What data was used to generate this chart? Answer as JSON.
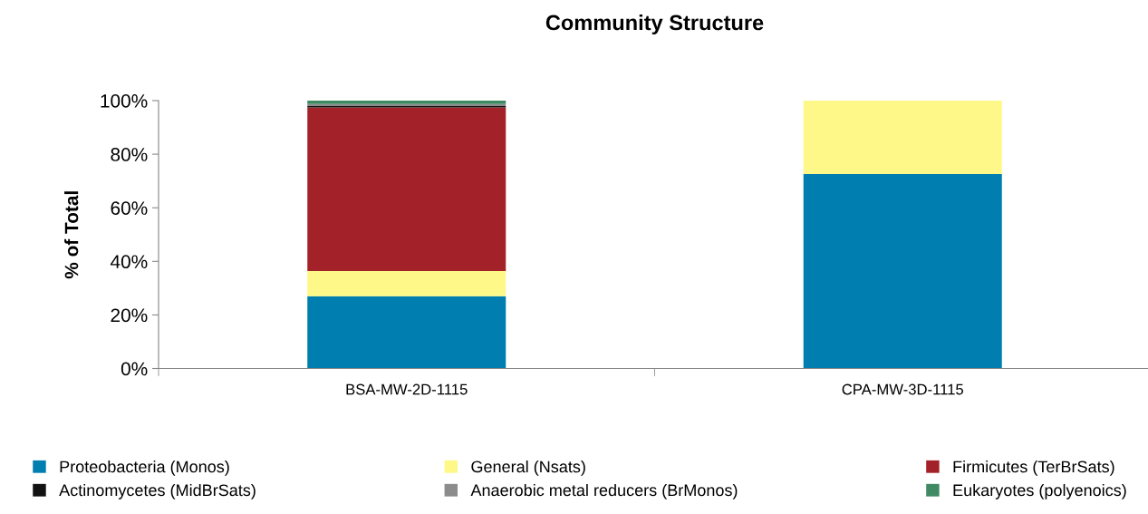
{
  "chart_data": {
    "type": "bar",
    "stacked": true,
    "title": "Community Structure",
    "ylabel": "% of Total",
    "categories": [
      "BSA-MW-2D-1115",
      "CPA-MW-3D-1115"
    ],
    "series": [
      {
        "name": "Proteobacteria (Monos)",
        "color": "#007eb0",
        "values": [
          27,
          72.6
        ]
      },
      {
        "name": "General (Nsats)",
        "color": "#fdf887",
        "values": [
          9.4,
          27.4
        ]
      },
      {
        "name": "Firmicutes (TerBrSats)",
        "color": "#a32128",
        "values": [
          61.1,
          0
        ]
      },
      {
        "name": "Actinomycetes (MidBrSats)",
        "color": "#121212",
        "values": [
          0.5,
          0
        ]
      },
      {
        "name": "Anaerobic metal reducers (BrMonos)",
        "color": "#8c8c8c",
        "values": [
          0.7,
          0
        ]
      },
      {
        "name": "Eukaryotes (polyenoics)",
        "color": "#3f8a63",
        "values": [
          1.3,
          0
        ]
      }
    ],
    "ylim": [
      0,
      100
    ],
    "yticks": [
      {
        "value": 0,
        "label": "0%"
      },
      {
        "value": 20,
        "label": "20%"
      },
      {
        "value": 40,
        "label": "40%"
      },
      {
        "value": 60,
        "label": "60%"
      },
      {
        "value": 80,
        "label": "80%"
      },
      {
        "value": 100,
        "label": "100%"
      }
    ],
    "grid": false,
    "legend": "bottom"
  }
}
